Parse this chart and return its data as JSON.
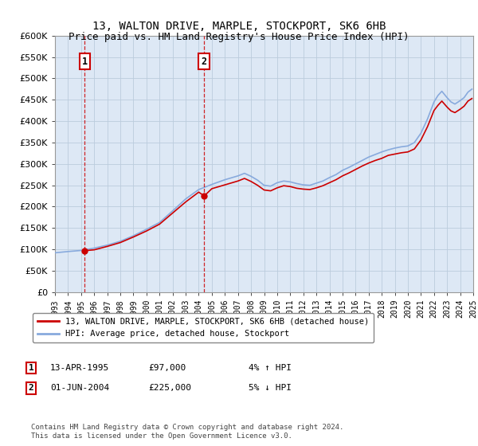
{
  "title": "13, WALTON DRIVE, MARPLE, STOCKPORT, SK6 6HB",
  "subtitle": "Price paid vs. HM Land Registry's House Price Index (HPI)",
  "ylim": [
    0,
    600000
  ],
  "yticks": [
    0,
    50000,
    100000,
    150000,
    200000,
    250000,
    300000,
    350000,
    400000,
    450000,
    500000,
    550000,
    600000
  ],
  "hpi_color": "#88aadd",
  "price_color": "#cc0000",
  "bg_color": "#dde8f5",
  "grid_color": "#bbccdd",
  "purchases": [
    {
      "date_num": 1995.28,
      "price": 97000,
      "label": "1",
      "pct": "4% ↑ HPI",
      "date_str": "13-APR-1995"
    },
    {
      "date_num": 2004.42,
      "price": 225000,
      "label": "2",
      "pct": "5% ↓ HPI",
      "date_str": "01-JUN-2004"
    }
  ],
  "legend_line1": "13, WALTON DRIVE, MARPLE, STOCKPORT, SK6 6HB (detached house)",
  "legend_line2": "HPI: Average price, detached house, Stockport",
  "footnote": "Contains HM Land Registry data © Crown copyright and database right 2024.\nThis data is licensed under the Open Government Licence v3.0.",
  "xmin": 1993,
  "xmax": 2025,
  "xtick_years": [
    1993,
    1994,
    1995,
    1996,
    1997,
    1998,
    1999,
    2000,
    2001,
    2002,
    2003,
    2004,
    2005,
    2006,
    2007,
    2008,
    2009,
    2010,
    2011,
    2012,
    2013,
    2014,
    2015,
    2016,
    2017,
    2018,
    2019,
    2020,
    2021,
    2022,
    2023,
    2024,
    2025
  ],
  "hpi_years": [
    1993,
    1994,
    1995,
    1996,
    1997,
    1998,
    1999,
    2000,
    2001,
    2002,
    2003,
    2004,
    2005,
    2006,
    2007,
    2007.5,
    2008,
    2008.5,
    2009,
    2009.5,
    2010,
    2010.5,
    2011,
    2011.5,
    2012,
    2012.5,
    2013,
    2013.5,
    2014,
    2014.5,
    2015,
    2015.5,
    2016,
    2016.5,
    2017,
    2017.5,
    2018,
    2018.5,
    2019,
    2019.5,
    2020,
    2020.5,
    2021,
    2021.5,
    2022,
    2022.3,
    2022.6,
    2023,
    2023.3,
    2023.6,
    2024,
    2024.3,
    2024.6,
    2024.9
  ],
  "hpi_vals": [
    92000,
    95000,
    97500,
    103000,
    110000,
    119000,
    132000,
    147000,
    163000,
    190000,
    218000,
    240000,
    252000,
    263000,
    272000,
    278000,
    271000,
    262000,
    250000,
    248000,
    256000,
    260000,
    258000,
    254000,
    251000,
    250000,
    255000,
    260000,
    268000,
    275000,
    285000,
    292000,
    300000,
    308000,
    316000,
    322000,
    328000,
    333000,
    337000,
    340000,
    342000,
    350000,
    372000,
    405000,
    445000,
    460000,
    470000,
    455000,
    445000,
    440000,
    448000,
    455000,
    468000,
    475000
  ],
  "prop_years": [
    1995.28,
    1996,
    1997,
    1998,
    1999,
    2000,
    2001,
    2002,
    2003,
    2004,
    2004.42,
    2005,
    2006,
    2007,
    2007.5,
    2008,
    2008.5,
    2009,
    2009.5,
    2010,
    2010.5,
    2011,
    2011.5,
    2012,
    2012.5,
    2013,
    2013.5,
    2014,
    2014.5,
    2015,
    2015.5,
    2016,
    2016.5,
    2017,
    2017.5,
    2018,
    2018.5,
    2019,
    2019.5,
    2020,
    2020.5,
    2021,
    2021.5,
    2022,
    2022.3,
    2022.6,
    2023,
    2023.3,
    2023.6,
    2024,
    2024.3,
    2024.6,
    2024.9
  ],
  "prop_vals": [
    97000,
    99000,
    107000,
    116000,
    129000,
    143000,
    159000,
    185000,
    211000,
    234000,
    225000,
    242000,
    251000,
    260000,
    266000,
    259000,
    250000,
    239000,
    237000,
    244000,
    249000,
    247000,
    243000,
    241000,
    240000,
    244000,
    249000,
    256000,
    263000,
    272000,
    279000,
    287000,
    295000,
    302000,
    308000,
    313000,
    320000,
    323000,
    326000,
    328000,
    335000,
    356000,
    387000,
    425000,
    437000,
    447000,
    433000,
    424000,
    420000,
    428000,
    435000,
    447000,
    453000
  ]
}
